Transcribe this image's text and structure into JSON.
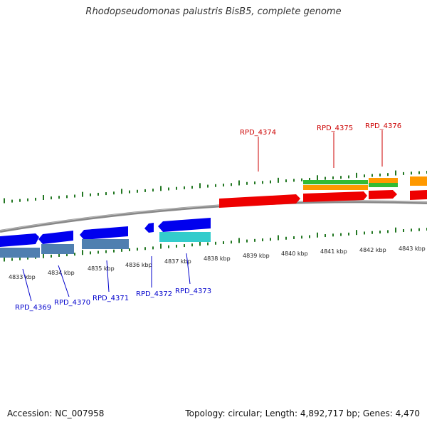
{
  "title": "Rhodopseudomonas palustris BisB5, complete genome",
  "footer": {
    "accession": "Accession: NC_007958",
    "summary": "Topology: circular; Length: 4,892,717 bp; Genes: 4,470"
  },
  "colors": {
    "forward_label": "#cc0000",
    "reverse_label": "#0000cc",
    "forward_cds": "#ee0000",
    "reverse_cds": "#0000ee",
    "gene_orange": "#ff9900",
    "gene_green": "#33bb33",
    "gene_steelblue": "#4f7fb0",
    "gene_cyan": "#33cccc",
    "backbone": "#888888",
    "ticks": "#227722"
  },
  "kbp_labels": [
    "4833 kbp",
    "4834 kbp",
    "4835 kbp",
    "4836 kbp",
    "4837 kbp",
    "4838 kbp",
    "4839 kbp",
    "4840 kbp",
    "4841 kbp",
    "4842 kbp",
    "4843 kbp"
  ],
  "gene_labels": {
    "forward": [
      "RPD_4374",
      "RPD_4375",
      "RPD_4376"
    ],
    "reverse": [
      "RPD_4369",
      "RPD_4370",
      "RPD_4371",
      "RPD_4372",
      "RPD_4373"
    ]
  }
}
